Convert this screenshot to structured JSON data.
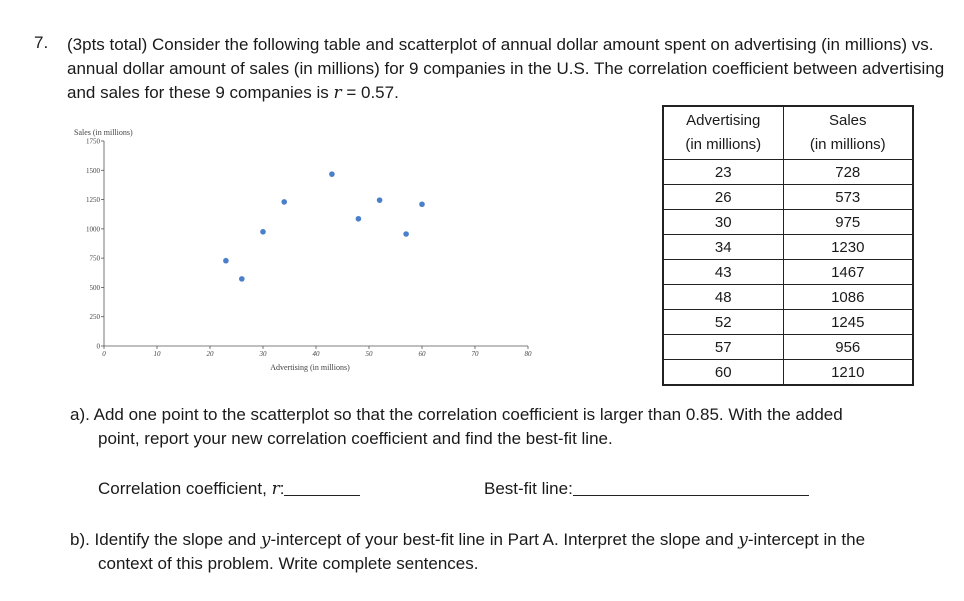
{
  "question": {
    "number": "7.",
    "prefix": "(3pts total) Consider the following table and scatterplot of annual dollar amount spent on advertising (in millions) vs. annual dollar amount of sales (in millions) for 9 companies in the U.S. The correlation coefficient between advertising and sales for these 9 companies is ",
    "r_symbol": "r",
    "r_value": " = 0.57."
  },
  "table": {
    "header_col1": [
      "Advertising",
      "(in millions)"
    ],
    "header_col2": [
      "Sales",
      "(in millions)"
    ],
    "rows": [
      [
        "23",
        "728"
      ],
      [
        "26",
        "573"
      ],
      [
        "30",
        "975"
      ],
      [
        "34",
        "1230"
      ],
      [
        "43",
        "1467"
      ],
      [
        "48",
        "1086"
      ],
      [
        "52",
        "1245"
      ],
      [
        "57",
        "956"
      ],
      [
        "60",
        "1210"
      ]
    ]
  },
  "chart_data": {
    "type": "scatter",
    "ylabel": "Sales (in millions)",
    "xlabel": "Advertising (in millions)",
    "x_ticks": [
      "0",
      "10",
      "20",
      "30",
      "40",
      "50",
      "60",
      "70",
      "80"
    ],
    "y_ticks": [
      "0",
      "250",
      "500",
      "750",
      "1000",
      "1250",
      "1500",
      "1750"
    ],
    "xlim": [
      0,
      80
    ],
    "ylim": [
      0,
      1750
    ],
    "point_color": "#4a7fc9",
    "points": [
      {
        "x": 23,
        "y": 728
      },
      {
        "x": 26,
        "y": 573
      },
      {
        "x": 30,
        "y": 975
      },
      {
        "x": 34,
        "y": 1230
      },
      {
        "x": 43,
        "y": 1467
      },
      {
        "x": 48,
        "y": 1086
      },
      {
        "x": 52,
        "y": 1245
      },
      {
        "x": 57,
        "y": 956
      },
      {
        "x": 60,
        "y": 1210
      }
    ]
  },
  "part_a": {
    "line1": "a). Add one point to the scatterplot so that the correlation coefficient is larger than 0.85.  With the added",
    "line2": "point, report your new correlation coefficient and find the best-fit line.",
    "corr_label": "Correlation coefficient, ",
    "corr_symbol": "r",
    "corr_colon": ":",
    "bestfit_label": "Best-fit line:"
  },
  "part_b": {
    "line1_a": "b). Identify the slope and ",
    "line1_y1": "y",
    "line1_b": "-intercept of your best-fit line in Part A.  Interpret the slope and ",
    "line1_y2": "y",
    "line1_c": "-intercept in the",
    "line2": "context of this problem. Write complete sentences."
  }
}
